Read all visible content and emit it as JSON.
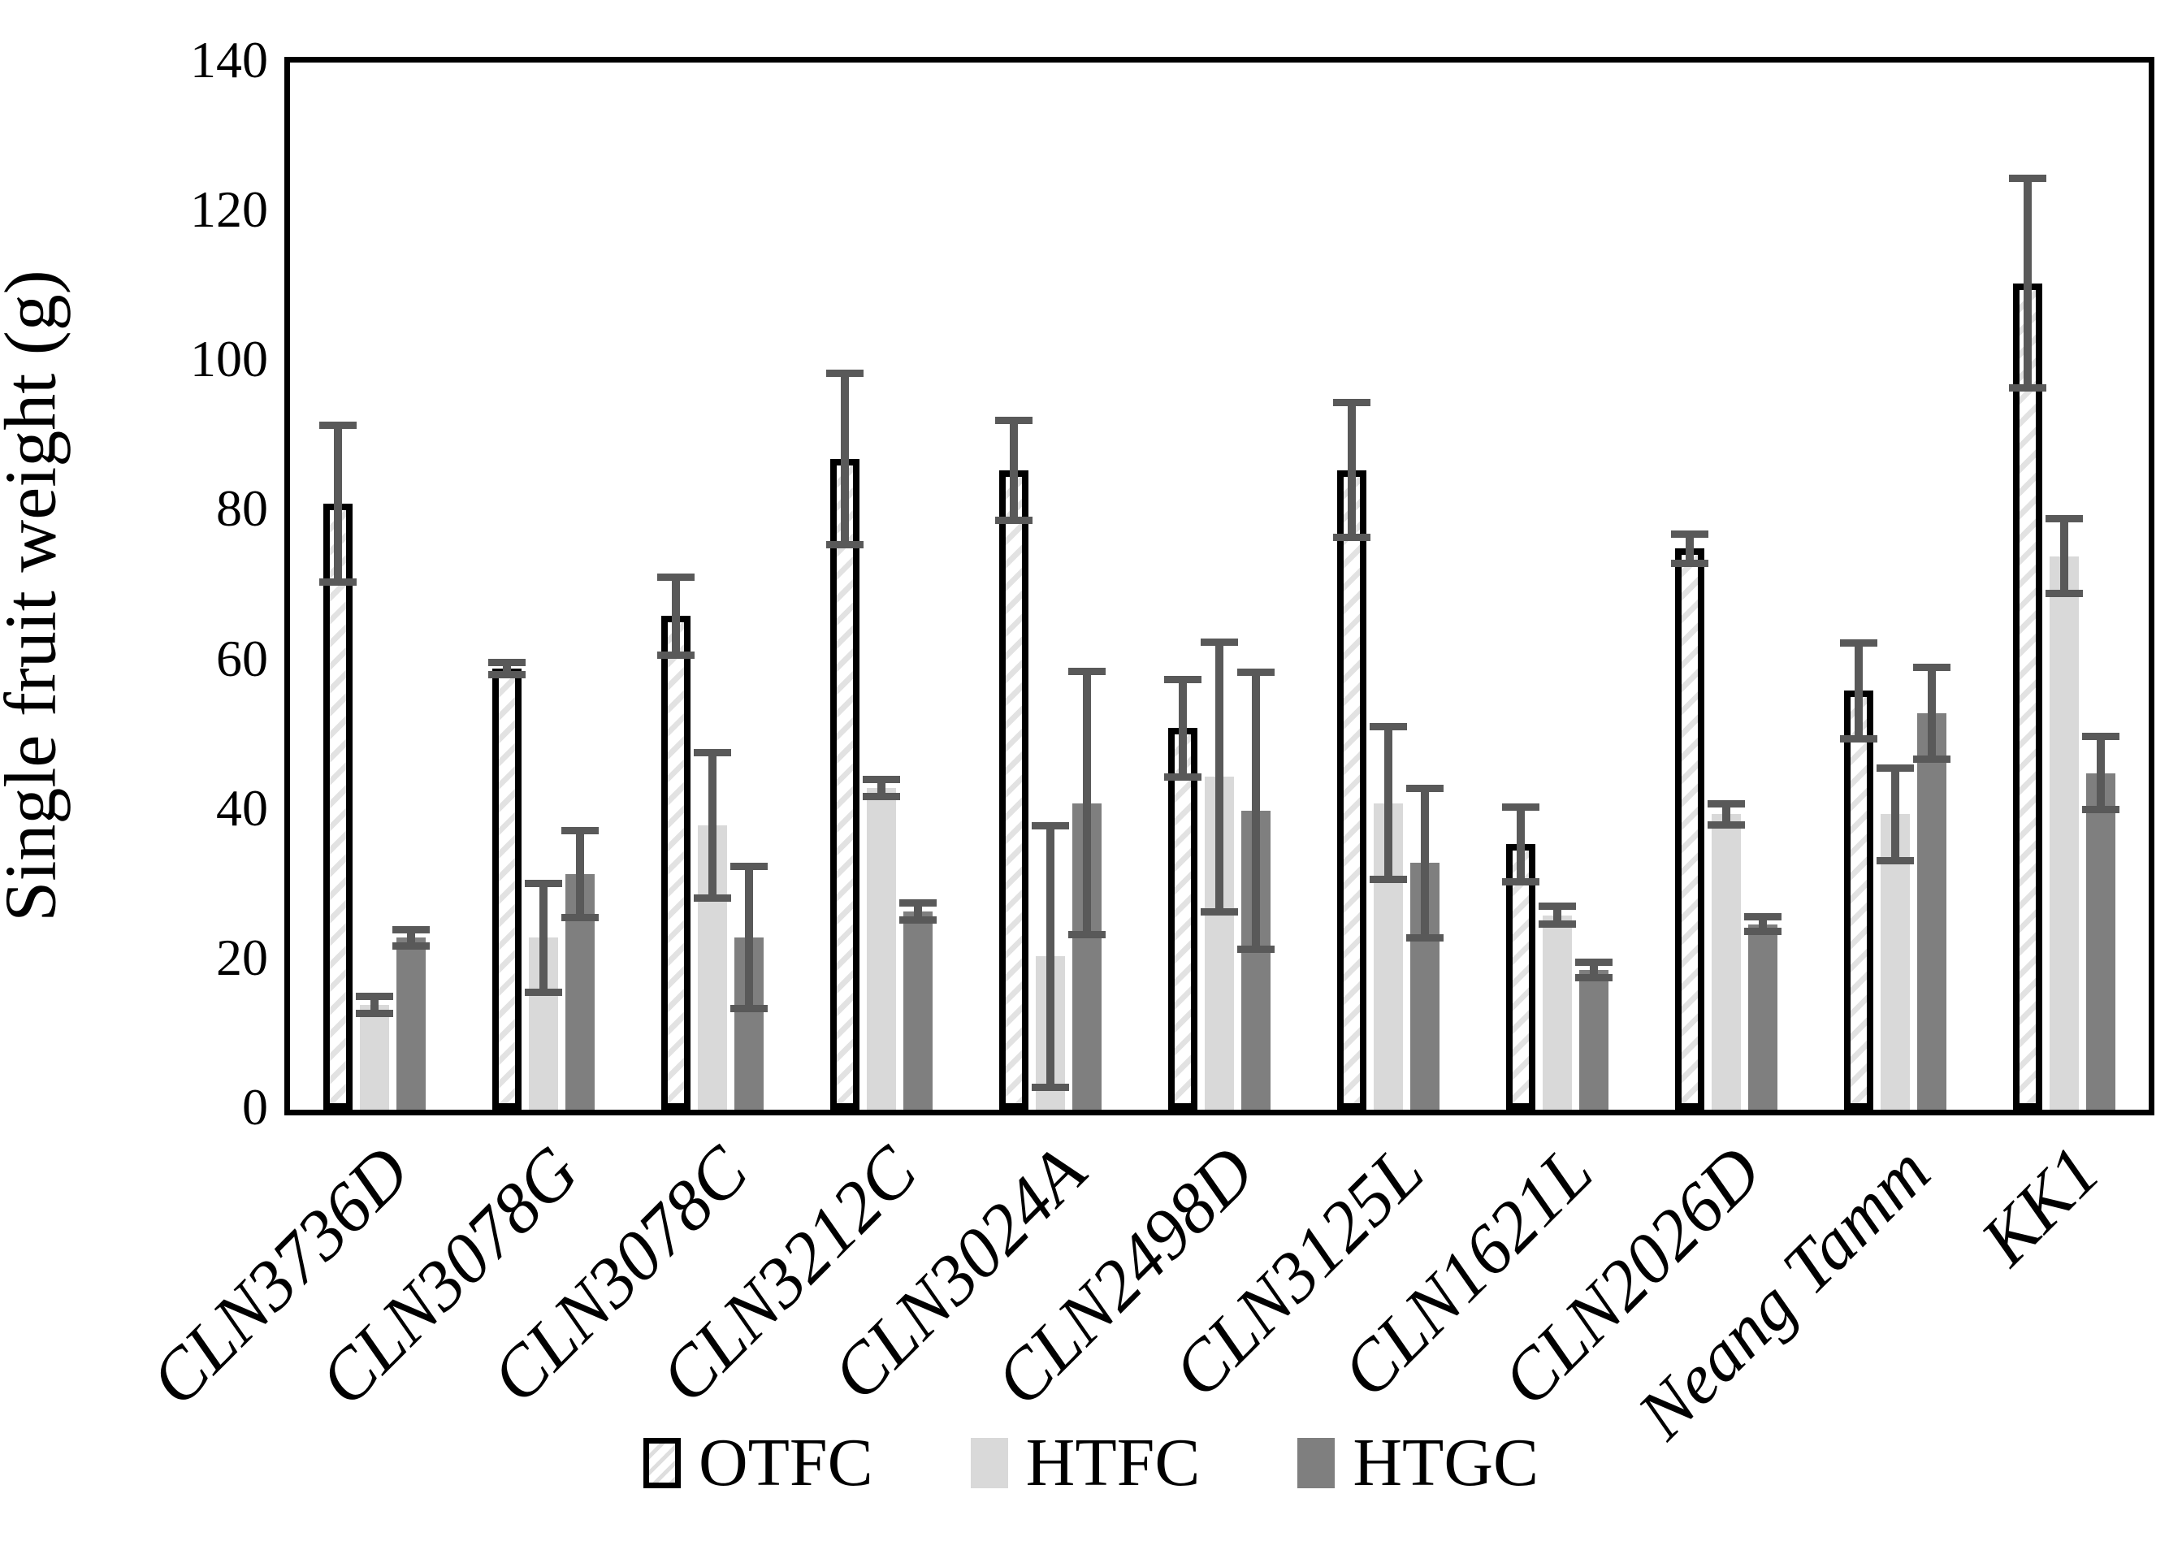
{
  "chart_data": {
    "type": "bar",
    "title": "",
    "xlabel": "",
    "ylabel": "Single fruit weight (g)",
    "ylim": [
      0,
      140
    ],
    "yticks": [
      0,
      20,
      40,
      60,
      80,
      100,
      120,
      140
    ],
    "grid": false,
    "legend_position": "bottom",
    "error_bars": true,
    "error_color": "#595959",
    "axis_color": "#000000",
    "categories": [
      "CLN3736D",
      "CLN3078G",
      "CLN3078C",
      "CLN3212C",
      "CLN3024A",
      "CLN2498D",
      "CLN3125L",
      "CLN1621L",
      "CLN2026D",
      "Neang Tamm",
      "KK1"
    ],
    "series": [
      {
        "name": "OTFC",
        "fill": "hatched",
        "hatch_color": "#e2e2e2",
        "border_color": "#000000",
        "values": [
          81,
          59,
          66,
          87,
          85.5,
          51,
          85.5,
          35.5,
          75,
          56,
          110.5
        ],
        "errors": [
          10.5,
          0.8,
          5.2,
          11.5,
          6.7,
          6.5,
          9,
          5,
          2,
          6.4,
          14
        ]
      },
      {
        "name": "HTFC",
        "fill": "#d9d9d9",
        "values": [
          14,
          23,
          38,
          43,
          20.5,
          44.5,
          41,
          26,
          39.5,
          39.5,
          74
        ],
        "errors": [
          1.1,
          7.3,
          9.7,
          1.1,
          17.5,
          18,
          10.2,
          1.2,
          1.4,
          6.2,
          5
        ]
      },
      {
        "name": "HTGC",
        "fill": "#7f7f7f",
        "values": [
          23,
          31.5,
          23,
          26.5,
          41,
          40,
          33,
          18.7,
          24.8,
          53,
          45
        ],
        "errors": [
          1.1,
          5.8,
          9.5,
          1.1,
          17.6,
          18.5,
          10,
          1,
          1,
          6.1,
          4.9
        ]
      }
    ]
  }
}
